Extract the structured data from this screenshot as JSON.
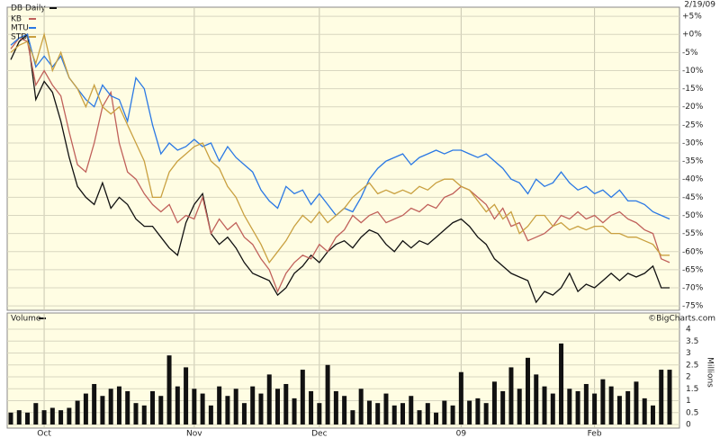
{
  "chart_data": [
    {
      "type": "line",
      "title": "DB Daily",
      "date": "2/19/09",
      "grid": true,
      "categories": [
        null,
        null,
        null,
        null,
        "Oct",
        null,
        null,
        null,
        null,
        null,
        null,
        null,
        null,
        null,
        null,
        null,
        null,
        null,
        null,
        null,
        null,
        null,
        "Nov",
        null,
        null,
        null,
        null,
        null,
        null,
        null,
        null,
        null,
        null,
        null,
        null,
        null,
        null,
        "Dec",
        null,
        null,
        null,
        null,
        null,
        null,
        null,
        null,
        null,
        null,
        null,
        null,
        null,
        null,
        null,
        null,
        "09",
        null,
        null,
        null,
        null,
        null,
        null,
        null,
        null,
        null,
        null,
        null,
        null,
        null,
        null,
        null,
        "Feb",
        null,
        null,
        null,
        null,
        null,
        null,
        null,
        null,
        null
      ],
      "series": [
        {
          "name": "DB",
          "color": "#111111",
          "values": [
            -7,
            -2,
            0,
            -18,
            -13,
            -16,
            -24,
            -34,
            -42,
            -45,
            -47,
            -41,
            -48,
            -45,
            -47,
            -51,
            -53,
            -53,
            -56,
            -59,
            -61,
            -52,
            -47,
            -44,
            -55,
            -58,
            -56,
            -59,
            -63,
            -66,
            -67,
            -68,
            -72,
            -70,
            -66,
            -64,
            -61,
            -63,
            -60,
            -58,
            -57,
            -59,
            -56,
            -54,
            -55,
            -58,
            -60,
            -57,
            -59,
            -57,
            -58,
            -56,
            -54,
            -52,
            -51,
            -53,
            -56,
            -58,
            -62,
            -64,
            -66,
            -67,
            -68,
            -74,
            -71,
            -72,
            -70,
            -66,
            -71,
            -69,
            -70,
            -68,
            -66,
            -68,
            -66,
            -67,
            -66,
            -64,
            -70,
            -70
          ]
        },
        {
          "name": "KB",
          "color": "#c0605a",
          "values": [
            -4,
            -1,
            -2,
            -14,
            -10,
            -14,
            -17,
            -27,
            -36,
            -38,
            -30,
            -20,
            -16,
            -30,
            -38,
            -40,
            -44,
            -47,
            -49,
            -47,
            -52,
            -50,
            -51,
            -45,
            -55,
            -51,
            -54,
            -52,
            -56,
            -58,
            -62,
            -65,
            -71,
            -66,
            -63,
            -61,
            -62,
            -58,
            -60,
            -56,
            -54,
            -50,
            -52,
            -50,
            -49,
            -52,
            -51,
            -50,
            -48,
            -49,
            -47,
            -48,
            -45,
            -44,
            -42,
            -43,
            -45,
            -47,
            -51,
            -48,
            -53,
            -52,
            -57,
            -56,
            -55,
            -53,
            -50,
            -51,
            -49,
            -51,
            -50,
            -52,
            -50,
            -49,
            -51,
            -52,
            -54,
            -55,
            -62,
            -63
          ]
        },
        {
          "name": "MTU",
          "color": "#2a78e4",
          "values": [
            -3,
            -1,
            0,
            -9,
            -6,
            -9,
            -6,
            -12,
            -15,
            -18,
            -20,
            -14,
            -17,
            -18,
            -24,
            -12,
            -15,
            -25,
            -33,
            -30,
            -32,
            -31,
            -29,
            -31,
            -30,
            -35,
            -31,
            -34,
            -36,
            -38,
            -43,
            -46,
            -48,
            -42,
            -44,
            -43,
            -47,
            -44,
            -47,
            -50,
            -48,
            -49,
            -45,
            -40,
            -37,
            -35,
            -34,
            -33,
            -36,
            -34,
            -33,
            -32,
            -33,
            -32,
            -32,
            -33,
            -34,
            -33,
            -35,
            -37,
            -40,
            -41,
            -44,
            -40,
            -42,
            -41,
            -38,
            -41,
            -43,
            -42,
            -44,
            -43,
            -45,
            -43,
            -46,
            -46,
            -47,
            -49,
            -50,
            -51
          ]
        },
        {
          "name": "STD",
          "color": "#c9a040",
          "values": [
            -5,
            -3,
            -2,
            -8,
            0,
            -10,
            -5,
            -12,
            -15,
            -20,
            -14,
            -20,
            -22,
            -20,
            -25,
            -30,
            -35,
            -45,
            -45,
            -38,
            -35,
            -33,
            -31,
            -30,
            -35,
            -37,
            -42,
            -45,
            -50,
            -54,
            -58,
            -63,
            -60,
            -57,
            -53,
            -50,
            -52,
            -49,
            -52,
            -50,
            -48,
            -45,
            -43,
            -41,
            -44,
            -43,
            -44,
            -43,
            -44,
            -42,
            -43,
            -41,
            -40,
            -40,
            -42,
            -43,
            -46,
            -49,
            -47,
            -51,
            -49,
            -55,
            -53,
            -50,
            -50,
            -53,
            -52,
            -54,
            -53,
            -54,
            -53,
            -53,
            -55,
            -55,
            -56,
            -56,
            -57,
            -58,
            -61,
            -61
          ]
        }
      ],
      "ylim": [
        -76.2,
        7.5
      ],
      "yticks": [
        {
          "value": 5,
          "label": "+5%"
        },
        {
          "value": 0,
          "label": "+0%"
        },
        {
          "value": -5,
          "label": "-5%"
        },
        {
          "value": -10,
          "label": "-10%"
        },
        {
          "value": -15,
          "label": "-15%"
        },
        {
          "value": -20,
          "label": "-20%"
        },
        {
          "value": -25,
          "label": "-25%"
        },
        {
          "value": -30,
          "label": "-30%"
        },
        {
          "value": -35,
          "label": "-35%"
        },
        {
          "value": -40,
          "label": "-40%"
        },
        {
          "value": -45,
          "label": "-45%"
        },
        {
          "value": -50,
          "label": "-50%"
        },
        {
          "value": -55,
          "label": "-55%"
        },
        {
          "value": -60,
          "label": "-60%"
        },
        {
          "value": -65,
          "label": "-65%"
        },
        {
          "value": -70,
          "label": "-70%"
        },
        {
          "value": -75,
          "label": "-75%"
        }
      ]
    },
    {
      "type": "bar",
      "title": "Volume",
      "credit": "©BigCharts.com",
      "ylabel": "Millions",
      "color": "#111111",
      "grid": true,
      "values": [
        0.5,
        0.6,
        0.5,
        0.9,
        0.6,
        0.7,
        0.6,
        0.7,
        1.0,
        1.3,
        1.7,
        1.2,
        1.5,
        1.6,
        1.4,
        0.9,
        0.8,
        1.4,
        1.2,
        2.9,
        1.6,
        2.4,
        1.5,
        1.3,
        0.8,
        1.6,
        1.2,
        1.5,
        0.9,
        1.6,
        1.3,
        2.1,
        1.5,
        1.7,
        1.1,
        2.3,
        1.4,
        0.9,
        2.5,
        1.4,
        1.2,
        0.6,
        1.5,
        1.0,
        0.9,
        1.3,
        0.8,
        0.9,
        1.2,
        0.6,
        0.9,
        0.5,
        1.0,
        0.8,
        2.2,
        1.0,
        1.1,
        0.9,
        1.8,
        1.4,
        2.4,
        1.5,
        2.8,
        2.1,
        1.6,
        1.3,
        3.4,
        1.5,
        1.4,
        1.7,
        1.3,
        1.9,
        1.6,
        1.2,
        1.4,
        1.8,
        1.1,
        0.8,
        2.3,
        2.3
      ],
      "ylim": [
        -0.15,
        4.68
      ],
      "yticks": [
        0,
        0.5,
        1,
        1.5,
        2,
        2.5,
        3,
        3.5,
        4
      ]
    }
  ]
}
